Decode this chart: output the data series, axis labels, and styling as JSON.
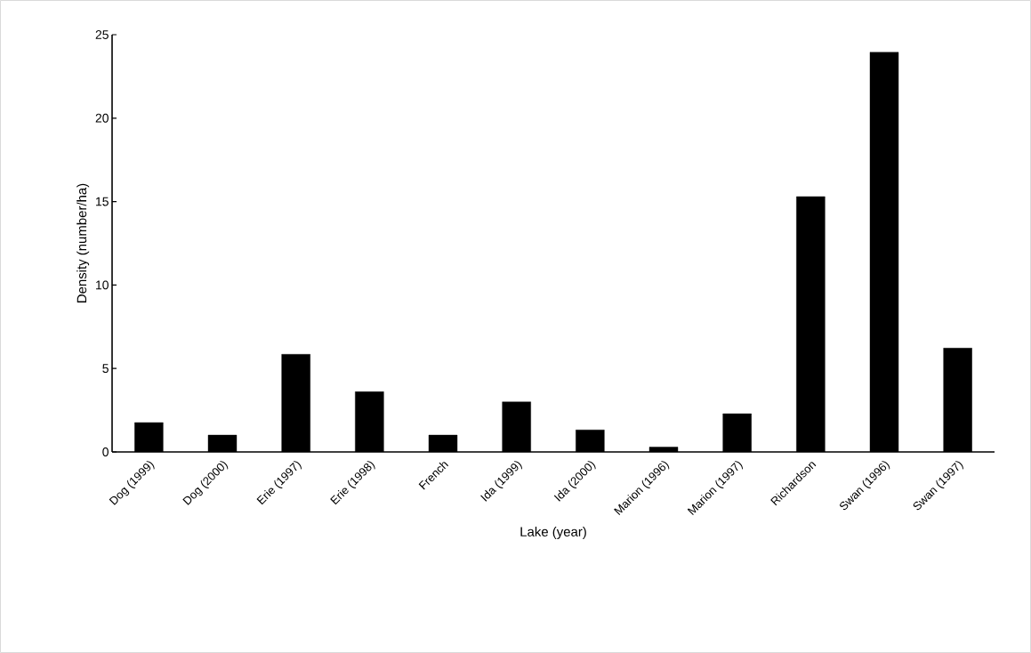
{
  "chart_data": {
    "type": "bar",
    "xlabel": "Lake (year)",
    "ylabel": "Density (number/ha)",
    "categories": [
      "Dog (1999)",
      "Dog (2000)",
      "Erie (1997)",
      "Erie (1998)",
      "French",
      "Ida (1999)",
      "Ida (2000)",
      "Marion (1996)",
      "Marion (1997)",
      "Richardson",
      "Swan (1996)",
      "Swan (1997)"
    ],
    "values": [
      1.76,
      1.01,
      5.85,
      3.61,
      1.01,
      3.0,
      1.32,
      0.29,
      2.29,
      15.3,
      23.95,
      6.22
    ],
    "color": "#000000",
    "ylim": [
      0,
      25
    ],
    "yticks": [
      0,
      5,
      10,
      15,
      20,
      25
    ],
    "grid": false
  }
}
